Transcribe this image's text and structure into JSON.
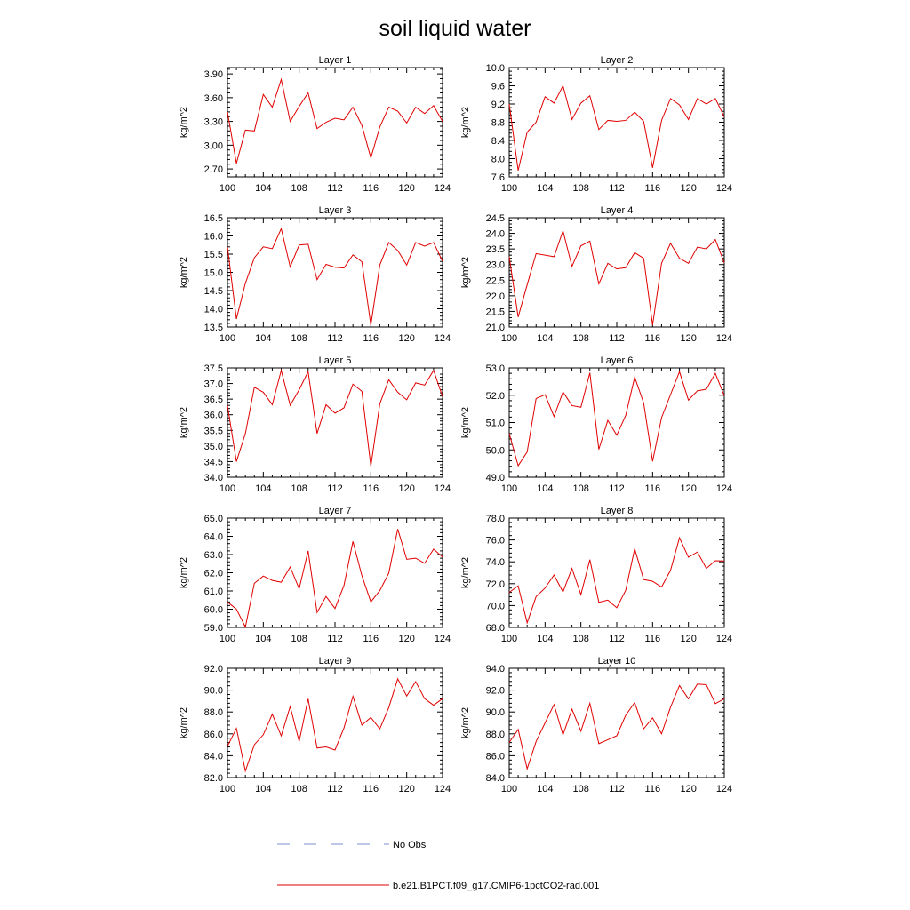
{
  "title": "soil liquid water",
  "legend": [
    {
      "label": "No Obs",
      "color": "#7b8fd6",
      "dash": true
    },
    {
      "label": "b.e21.B1PCT.f09_g17.CMIP6-1pctCO2-rad.001",
      "color": "#e00000",
      "dash": false
    }
  ],
  "chart_data": [
    {
      "type": "line",
      "title": "Layer 1",
      "ylabel": "kg/m^2",
      "xlim": [
        100,
        124
      ],
      "xticks": [
        "100",
        "104",
        "108",
        "112",
        "116",
        "120",
        "124"
      ],
      "ylim": [
        2.6,
        3.98
      ],
      "yticks": [
        "2.70",
        "3.00",
        "3.30",
        "3.60",
        "3.90"
      ],
      "x": [
        100,
        101,
        102,
        103,
        104,
        105,
        106,
        107,
        108,
        109,
        110,
        111,
        112,
        113,
        114,
        115,
        116,
        117,
        118,
        119,
        120,
        121,
        122,
        123,
        124
      ],
      "series": [
        {
          "values": [
            3.42,
            2.77,
            3.19,
            3.18,
            3.64,
            3.48,
            3.83,
            3.3,
            3.49,
            3.66,
            3.21,
            3.29,
            3.34,
            3.32,
            3.48,
            3.25,
            2.84,
            3.23,
            3.48,
            3.43,
            3.28,
            3.48,
            3.4,
            3.5,
            3.3
          ]
        }
      ]
    },
    {
      "type": "line",
      "title": "Layer 2",
      "ylabel": "kg/m^2",
      "xlim": [
        100,
        124
      ],
      "xticks": [
        "100",
        "104",
        "108",
        "112",
        "116",
        "120",
        "124"
      ],
      "ylim": [
        7.6,
        10.0
      ],
      "yticks": [
        "7.6",
        "8.0",
        "8.4",
        "8.8",
        "9.2",
        "9.6",
        "10.0"
      ],
      "x": [
        100,
        101,
        102,
        103,
        104,
        105,
        106,
        107,
        108,
        109,
        110,
        111,
        112,
        113,
        114,
        115,
        116,
        117,
        118,
        119,
        120,
        121,
        122,
        123,
        124
      ],
      "series": [
        {
          "values": [
            9.2,
            7.74,
            8.58,
            8.8,
            9.36,
            9.22,
            9.6,
            8.86,
            9.22,
            9.38,
            8.64,
            8.84,
            8.82,
            8.84,
            9.02,
            8.82,
            7.8,
            8.84,
            9.32,
            9.18,
            8.86,
            9.32,
            9.2,
            9.32,
            8.92
          ]
        }
      ]
    },
    {
      "type": "line",
      "title": "Layer 3",
      "ylabel": "kg/m^2",
      "xlim": [
        100,
        124
      ],
      "xticks": [
        "100",
        "104",
        "108",
        "112",
        "116",
        "120",
        "124"
      ],
      "ylim": [
        13.5,
        16.5
      ],
      "yticks": [
        "13.5",
        "14.0",
        "14.5",
        "15.0",
        "15.5",
        "16.0",
        "16.5"
      ],
      "x": [
        100,
        101,
        102,
        103,
        104,
        105,
        106,
        107,
        108,
        109,
        110,
        111,
        112,
        113,
        114,
        115,
        116,
        117,
        118,
        119,
        120,
        121,
        122,
        123,
        124
      ],
      "series": [
        {
          "values": [
            15.7,
            13.72,
            14.7,
            15.4,
            15.7,
            15.65,
            16.2,
            15.15,
            15.75,
            15.77,
            14.8,
            15.22,
            15.14,
            15.12,
            15.48,
            15.29,
            13.55,
            15.2,
            15.82,
            15.6,
            15.2,
            15.82,
            15.72,
            15.82,
            15.3
          ]
        }
      ]
    },
    {
      "type": "line",
      "title": "Layer 4",
      "ylabel": "kg/m^2",
      "xlim": [
        100,
        124
      ],
      "xticks": [
        "100",
        "104",
        "108",
        "112",
        "116",
        "120",
        "124"
      ],
      "ylim": [
        21.0,
        24.5
      ],
      "yticks": [
        "21.0",
        "21.5",
        "22.0",
        "22.5",
        "23.0",
        "23.5",
        "24.0",
        "24.5"
      ],
      "x": [
        100,
        101,
        102,
        103,
        104,
        105,
        106,
        107,
        108,
        109,
        110,
        111,
        112,
        113,
        114,
        115,
        116,
        117,
        118,
        119,
        120,
        121,
        122,
        123,
        124
      ],
      "series": [
        {
          "values": [
            23.25,
            21.32,
            22.35,
            23.35,
            23.3,
            23.25,
            24.08,
            22.94,
            23.6,
            23.75,
            22.38,
            23.04,
            22.86,
            22.9,
            23.38,
            23.2,
            21.06,
            23.04,
            23.68,
            23.2,
            23.04,
            23.56,
            23.5,
            23.8,
            23.05
          ]
        }
      ]
    },
    {
      "type": "line",
      "title": "Layer 5",
      "ylabel": "kg/m^2",
      "xlim": [
        100,
        124
      ],
      "xticks": [
        "100",
        "104",
        "108",
        "112",
        "116",
        "120",
        "124"
      ],
      "ylim": [
        34.0,
        37.5
      ],
      "yticks": [
        "34.0",
        "34.5",
        "35.0",
        "35.5",
        "36.0",
        "36.5",
        "37.0",
        "37.5"
      ],
      "x": [
        100,
        101,
        102,
        103,
        104,
        105,
        106,
        107,
        108,
        109,
        110,
        111,
        112,
        113,
        114,
        115,
        116,
        117,
        118,
        119,
        120,
        121,
        122,
        123,
        124
      ],
      "series": [
        {
          "values": [
            36.3,
            34.5,
            35.4,
            36.88,
            36.72,
            36.32,
            37.42,
            36.3,
            36.8,
            37.38,
            35.4,
            36.32,
            36.05,
            36.22,
            36.98,
            36.75,
            34.35,
            36.35,
            37.12,
            36.72,
            36.48,
            37.02,
            36.95,
            37.42,
            36.58
          ]
        }
      ]
    },
    {
      "type": "line",
      "title": "Layer 6",
      "ylabel": "kg/m^2",
      "xlim": [
        100,
        124
      ],
      "xticks": [
        "100",
        "104",
        "108",
        "112",
        "116",
        "120",
        "124"
      ],
      "ylim": [
        49.0,
        53.0
      ],
      "yticks": [
        "49.0",
        "50.0",
        "51.0",
        "52.0",
        "53.0"
      ],
      "x": [
        100,
        101,
        102,
        103,
        104,
        105,
        106,
        107,
        108,
        109,
        110,
        111,
        112,
        113,
        114,
        115,
        116,
        117,
        118,
        119,
        120,
        121,
        122,
        123,
        124
      ],
      "series": [
        {
          "values": [
            50.6,
            49.42,
            49.92,
            51.88,
            52.02,
            51.22,
            52.12,
            51.62,
            51.56,
            52.82,
            50.02,
            51.08,
            50.54,
            51.26,
            52.66,
            51.72,
            49.58,
            51.18,
            52.02,
            52.86,
            51.82,
            52.16,
            52.22,
            52.8,
            51.98
          ]
        }
      ]
    },
    {
      "type": "line",
      "title": "Layer 7",
      "ylabel": "kg/m^2",
      "xlim": [
        100,
        124
      ],
      "xticks": [
        "100",
        "104",
        "108",
        "112",
        "116",
        "120",
        "124"
      ],
      "ylim": [
        59.0,
        65.0
      ],
      "yticks": [
        "59.0",
        "60.0",
        "61.0",
        "62.0",
        "63.0",
        "64.0",
        "65.0"
      ],
      "x": [
        100,
        101,
        102,
        103,
        104,
        105,
        106,
        107,
        108,
        109,
        110,
        111,
        112,
        113,
        114,
        115,
        116,
        117,
        118,
        119,
        120,
        121,
        122,
        123,
        124
      ],
      "series": [
        {
          "values": [
            60.4,
            60.0,
            59.02,
            61.42,
            61.82,
            61.58,
            61.48,
            62.32,
            61.12,
            63.2,
            59.82,
            60.7,
            60.04,
            61.3,
            63.72,
            61.84,
            60.4,
            61.02,
            61.98,
            64.4,
            62.74,
            62.8,
            62.52,
            63.3,
            62.86
          ]
        }
      ]
    },
    {
      "type": "line",
      "title": "Layer 8",
      "ylabel": "kg/m^2",
      "xlim": [
        100,
        124
      ],
      "xticks": [
        "100",
        "104",
        "108",
        "112",
        "116",
        "120",
        "124"
      ],
      "ylim": [
        68.0,
        78.0
      ],
      "yticks": [
        "68.0",
        "70.0",
        "72.0",
        "74.0",
        "76.0",
        "78.0"
      ],
      "x": [
        100,
        101,
        102,
        103,
        104,
        105,
        106,
        107,
        108,
        109,
        110,
        111,
        112,
        113,
        114,
        115,
        116,
        117,
        118,
        119,
        120,
        121,
        122,
        123,
        124
      ],
      "series": [
        {
          "values": [
            71.2,
            71.8,
            68.42,
            70.82,
            71.6,
            72.8,
            71.24,
            73.4,
            71.0,
            74.2,
            70.3,
            70.5,
            69.8,
            71.4,
            75.2,
            72.38,
            72.22,
            71.7,
            73.22,
            76.2,
            74.42,
            74.9,
            73.4,
            74.1,
            74.08
          ]
        }
      ]
    },
    {
      "type": "line",
      "title": "Layer 9",
      "ylabel": "kg/m^2",
      "xlim": [
        100,
        124
      ],
      "xticks": [
        "100",
        "104",
        "108",
        "112",
        "116",
        "120",
        "124"
      ],
      "ylim": [
        82.0,
        92.0
      ],
      "yticks": [
        "82.0",
        "84.0",
        "86.0",
        "88.0",
        "90.0",
        "92.0"
      ],
      "x": [
        100,
        101,
        102,
        103,
        104,
        105,
        106,
        107,
        108,
        109,
        110,
        111,
        112,
        113,
        114,
        115,
        116,
        117,
        118,
        119,
        120,
        121,
        122,
        123,
        124
      ],
      "series": [
        {
          "values": [
            84.86,
            86.5,
            82.6,
            85.0,
            85.92,
            87.8,
            85.82,
            88.5,
            85.3,
            89.2,
            84.7,
            84.8,
            84.52,
            86.54,
            89.44,
            86.8,
            87.5,
            86.46,
            88.4,
            91.04,
            89.46,
            90.78,
            89.22,
            88.62,
            89.22
          ]
        }
      ]
    },
    {
      "type": "line",
      "title": "Layer 10",
      "ylabel": "kg/m^2",
      "xlim": [
        100,
        124
      ],
      "xticks": [
        "100",
        "104",
        "108",
        "112",
        "116",
        "120",
        "124"
      ],
      "ylim": [
        84.0,
        94.0
      ],
      "yticks": [
        "84.0",
        "86.0",
        "88.0",
        "90.0",
        "92.0",
        "94.0"
      ],
      "x": [
        100,
        101,
        102,
        103,
        104,
        105,
        106,
        107,
        108,
        109,
        110,
        111,
        112,
        113,
        114,
        115,
        116,
        117,
        118,
        119,
        120,
        121,
        122,
        123,
        124
      ],
      "series": [
        {
          "values": [
            87.2,
            88.4,
            84.8,
            87.3,
            89.0,
            90.68,
            87.9,
            90.26,
            88.24,
            90.8,
            87.1,
            87.46,
            87.82,
            89.7,
            90.86,
            88.46,
            89.46,
            88.0,
            90.44,
            92.42,
            91.2,
            92.56,
            92.5,
            90.76,
            91.2
          ]
        }
      ]
    }
  ]
}
